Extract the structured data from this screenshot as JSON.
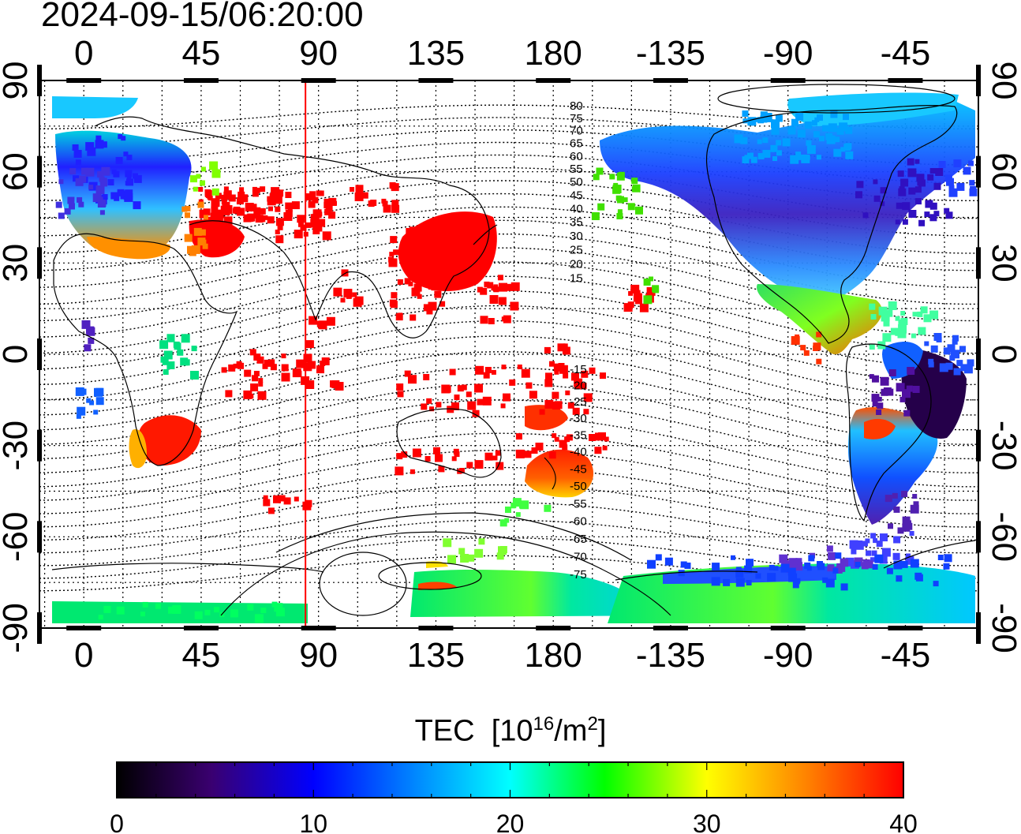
{
  "timestamp": "2024-09-15/06:20:00",
  "colorbar": {
    "label_base": "TEC  [10",
    "label_exp": "16",
    "label_mid": "/m",
    "label_exp2": "2",
    "label_end": "]",
    "ticks": [
      "0",
      "10",
      "20",
      "30",
      "40"
    ],
    "stops": [
      "#000000",
      "#3a0070",
      "#0000ff",
      "#00ffff",
      "#00ff00",
      "#ffff00",
      "#ff7f00",
      "#ff0000"
    ]
  },
  "axes": {
    "top_lon_labels": [
      "0",
      "45",
      "90",
      "135",
      "180",
      "-135",
      "-90",
      "-45"
    ],
    "bottom_lon_labels": [
      "0",
      "45",
      "90",
      "135",
      "180",
      "-135",
      "-90",
      "-45"
    ],
    "left_lat_labels": [
      "90",
      "60",
      "30",
      "0",
      "-30",
      "-60",
      "-90"
    ],
    "right_lat_labels": [
      "90",
      "60",
      "30",
      "0",
      "-30",
      "-60",
      "-90"
    ]
  },
  "contour_labels": [
    "80",
    "75",
    "70",
    "65",
    "60",
    "55",
    "50",
    "45",
    "40",
    "35",
    "30",
    "25",
    "20",
    "15",
    "-15",
    "-20",
    "-25",
    "-30",
    "-35",
    "-40",
    "-45",
    "-50",
    "-55",
    "-60",
    "-65",
    "-70",
    "-75"
  ],
  "terminator_longitude": 85
}
